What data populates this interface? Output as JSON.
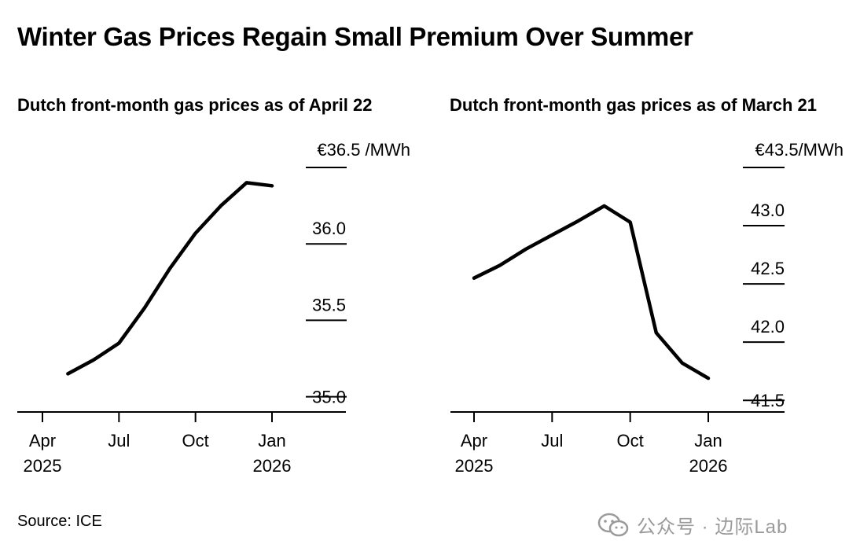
{
  "title": "Winter Gas Prices Regain Small Premium Over Summer",
  "source": "Source: ICE",
  "watermark": "公众号 · 边际Lab",
  "colors": {
    "line": "#000000",
    "axis": "#000000",
    "watermark": "#9a9a9a"
  },
  "chart_data": [
    {
      "type": "line",
      "title": "Dutch front-month gas prices as of April 22",
      "unit_label": "€36.5 /MWh",
      "x_ticks": [
        {
          "x": 0,
          "label": "Apr",
          "sublabel": "2025"
        },
        {
          "x": 3,
          "label": "Jul",
          "sublabel": ""
        },
        {
          "x": 6,
          "label": "Oct",
          "sublabel": ""
        },
        {
          "x": 9,
          "label": "Jan",
          "sublabel": "2026"
        }
      ],
      "y_ticks": [
        {
          "value": 36.5,
          "label": ""
        },
        {
          "value": 36.0,
          "label": "36.0"
        },
        {
          "value": 35.5,
          "label": "35.5"
        },
        {
          "value": 35.0,
          "label": "35.0"
        }
      ],
      "ylim": [
        34.9,
        36.6
      ],
      "xlim": [
        -1,
        12
      ],
      "series": [
        {
          "x": [
            1,
            2,
            3,
            4,
            5,
            6,
            7,
            8,
            9
          ],
          "values": [
            35.15,
            35.24,
            35.35,
            35.58,
            35.84,
            36.07,
            36.25,
            36.4,
            36.38
          ]
        }
      ],
      "grid": false,
      "legend": "none"
    },
    {
      "type": "line",
      "title": "Dutch front-month gas prices as of March 21",
      "unit_label": "€43.5/MWh",
      "x_ticks": [
        {
          "x": 0,
          "label": "Apr",
          "sublabel": "2025"
        },
        {
          "x": 3,
          "label": "Jul",
          "sublabel": ""
        },
        {
          "x": 6,
          "label": "Oct",
          "sublabel": ""
        },
        {
          "x": 9,
          "label": "Jan",
          "sublabel": "2026"
        }
      ],
      "y_ticks": [
        {
          "value": 43.5,
          "label": ""
        },
        {
          "value": 43.0,
          "label": "43.0"
        },
        {
          "value": 42.5,
          "label": "42.5"
        },
        {
          "value": 42.0,
          "label": "42.0"
        },
        {
          "value": 41.5,
          "label": "41.5"
        }
      ],
      "ylim": [
        41.4,
        43.6
      ],
      "xlim": [
        -1,
        12
      ],
      "series": [
        {
          "x": [
            0,
            1,
            2,
            3,
            4,
            5,
            6,
            7,
            8,
            9
          ],
          "values": [
            42.55,
            42.66,
            42.8,
            42.92,
            43.04,
            43.17,
            43.03,
            42.08,
            41.82,
            41.69
          ]
        }
      ],
      "grid": false,
      "legend": "none"
    }
  ]
}
